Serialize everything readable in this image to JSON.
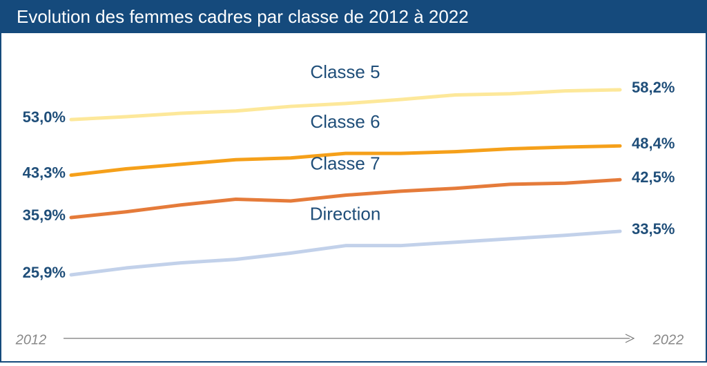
{
  "chart_data": {
    "type": "line",
    "title": "Evolution des femmes cadres par classe de 2012 à 2022",
    "x": [
      2012,
      2013,
      2014,
      2015,
      2016,
      2017,
      2018,
      2019,
      2020,
      2021,
      2022
    ],
    "xlim": [
      2012,
      2022
    ],
    "xticks": [
      2012,
      2022
    ],
    "series": [
      {
        "name": "Classe 5",
        "color": "#fde89a",
        "values": [
          53.0,
          53.5,
          54.1,
          54.5,
          55.3,
          55.8,
          56.5,
          57.3,
          57.5,
          58.0,
          58.2
        ],
        "value_labels": [
          "53,0%",
          null,
          null,
          null,
          null,
          null,
          null,
          null,
          null,
          null,
          "58,2%"
        ]
      },
      {
        "name": "Classe 6",
        "color": "#f5a01a",
        "values": [
          43.3,
          44.4,
          45.2,
          46.0,
          46.3,
          47.1,
          47.1,
          47.4,
          47.9,
          48.2,
          48.4
        ],
        "value_labels": [
          "43,3%",
          null,
          null,
          null,
          null,
          null,
          null,
          null,
          null,
          null,
          "48,4%"
        ]
      },
      {
        "name": "Classe 7",
        "color": "#e57b3a",
        "values": [
          35.9,
          36.9,
          38.1,
          39.1,
          38.8,
          39.8,
          40.5,
          41.0,
          41.7,
          41.9,
          42.5
        ],
        "value_labels": [
          "35,9%",
          null,
          null,
          null,
          null,
          null,
          null,
          null,
          null,
          null,
          "42,5%"
        ]
      },
      {
        "name": "Direction",
        "color": "#c2d1ea",
        "values": [
          25.9,
          27.1,
          28.0,
          28.6,
          29.7,
          31.0,
          31.0,
          31.6,
          32.2,
          32.8,
          33.5
        ],
        "value_labels": [
          "25,9%",
          null,
          null,
          null,
          null,
          null,
          null,
          null,
          null,
          null,
          "33,5%"
        ]
      }
    ]
  }
}
